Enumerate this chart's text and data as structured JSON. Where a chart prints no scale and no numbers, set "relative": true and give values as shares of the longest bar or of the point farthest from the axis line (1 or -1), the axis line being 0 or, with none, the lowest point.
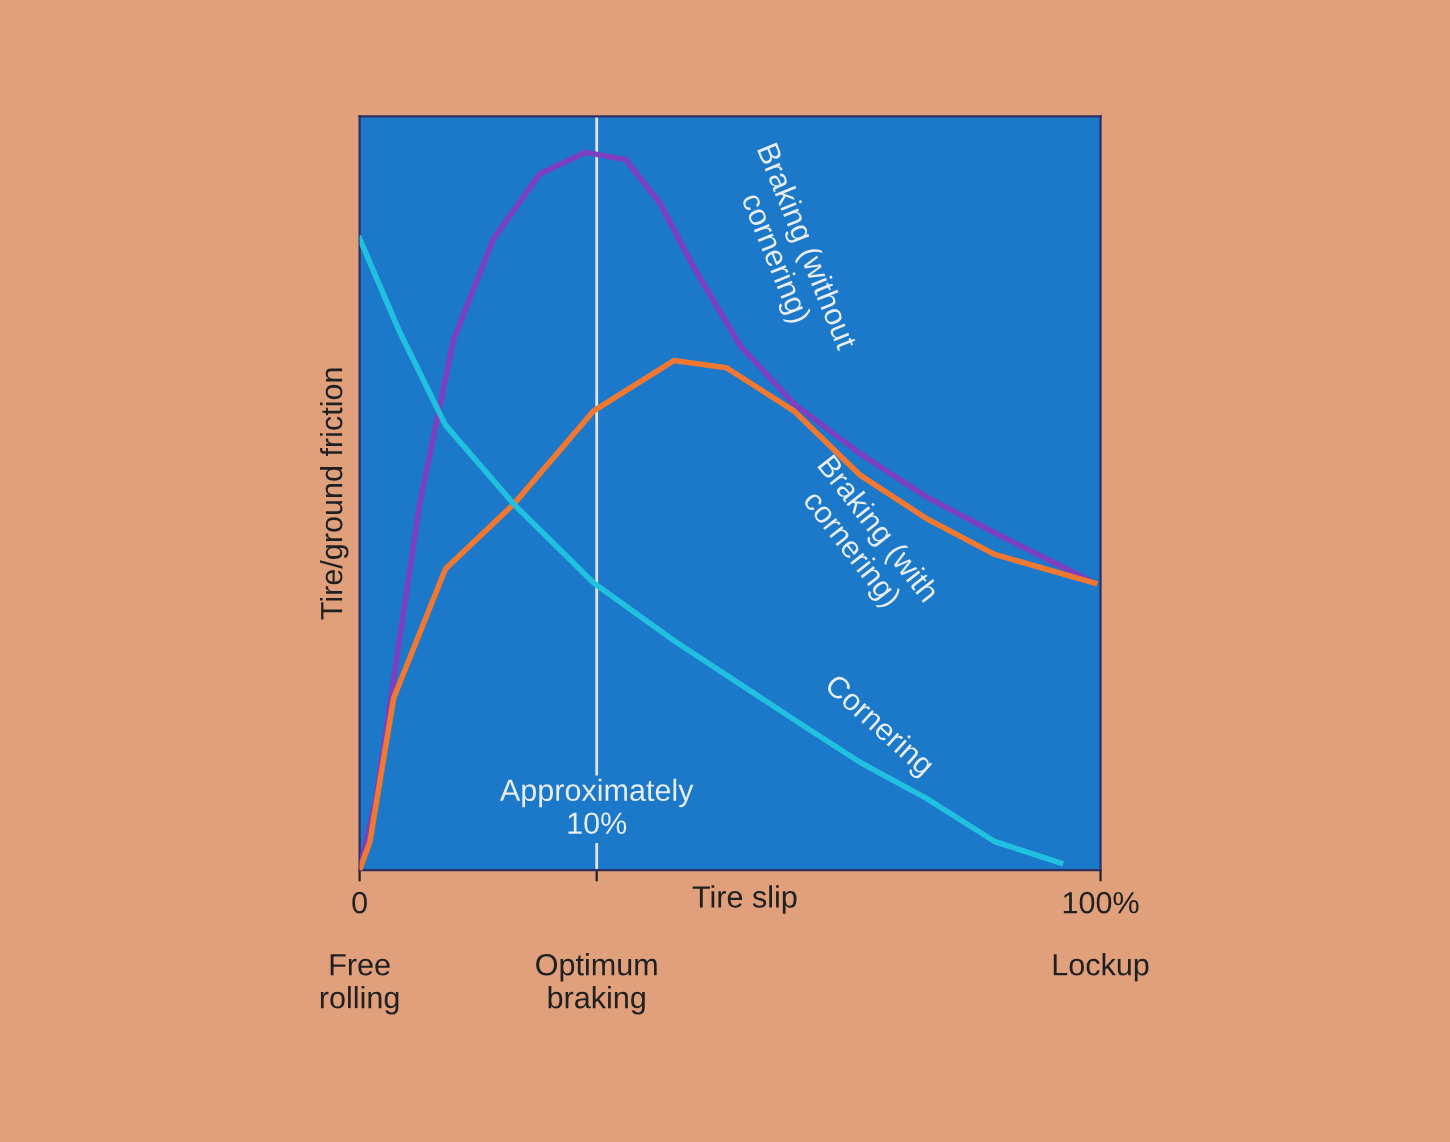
{
  "chart_data": {
    "type": "line",
    "relative": true,
    "ylabel": "Tire/ground friction",
    "xlabel": "Tire slip",
    "xlim": [
      0,
      100
    ],
    "xticks": [
      0,
      {
        "value": 32,
        "label": null
      },
      {
        "value": 100,
        "label": "100%"
      }
    ],
    "annotations": [
      "Free\nrolling",
      "Optimum\nbraking",
      "Lockup"
    ],
    "tick_labels": "x",
    "grid": false,
    "legend": false,
    "marker": "none",
    "line_style": "solid",
    "ref_lines": [
      {
        "axis": "x",
        "value": 32,
        "label": "Approximately\n10%",
        "color": "#e0e8f0"
      }
    ],
    "series": [
      {
        "name": "Braking (without\ncornering)",
        "color": "#7b3fc0",
        "x": [
          0,
          2.2,
          8.1,
          12.7,
          18.1,
          24.3,
          30.5,
          35.9,
          40.5,
          45.1,
          51.4,
          58.6,
          67.6,
          76.5,
          85.7,
          99.2
        ],
        "values": [
          0,
          0.1,
          0.51,
          0.74,
          0.88,
          0.97,
          1.0,
          0.99,
          0.93,
          0.84,
          0.73,
          0.65,
          0.58,
          0.52,
          0.47,
          0.4
        ]
      },
      {
        "name": "Braking (with\ncornering)",
        "color": "#f07830",
        "x": [
          0,
          1.4,
          4.6,
          11.6,
          20.8,
          31.6,
          42.4,
          49.5,
          58.6,
          67.6,
          76.5,
          85.7,
          99.2
        ],
        "values": [
          0,
          0.04,
          0.24,
          0.42,
          0.51,
          0.64,
          0.71,
          0.7,
          0.64,
          0.55,
          0.49,
          0.44,
          0.4
        ]
      },
      {
        "name": "Cornering",
        "color": "#20c0e0",
        "x": [
          0,
          5.4,
          11.6,
          20.8,
          31.6,
          42.4,
          58.6,
          67.6,
          76.5,
          85.7,
          94.6
        ],
        "values": [
          0.88,
          0.75,
          0.62,
          0.51,
          0.4,
          0.32,
          0.21,
          0.15,
          0.1,
          0.04,
          0.01
        ]
      }
    ]
  }
}
